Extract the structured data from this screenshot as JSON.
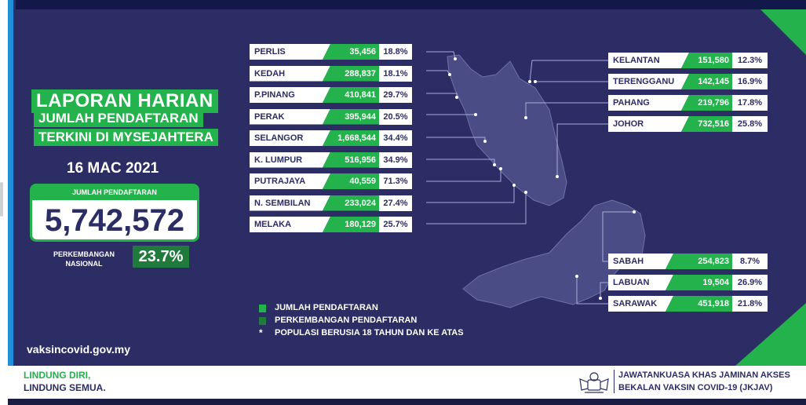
{
  "header": {
    "title_line1": "LAPORAN HARIAN",
    "title_line2": "JUMLAH PENDAFTARAN",
    "title_line3": "TERKINI DI MYSEJAHTERA",
    "date": "16 MAC 2021"
  },
  "summary": {
    "total_label": "JUMLAH PENDAFTARAN",
    "total_value": "5,742,572",
    "national_label_1": "PERKEMBANGAN",
    "national_label_2": "NASIONAL",
    "national_value": "23.7%"
  },
  "states_left": [
    {
      "name": "PERLIS",
      "registered": "35,456",
      "percent": "18.8%"
    },
    {
      "name": "KEDAH",
      "registered": "288,837",
      "percent": "18.1%"
    },
    {
      "name": "P.PINANG",
      "registered": "410,841",
      "percent": "29.7%"
    },
    {
      "name": "PERAK",
      "registered": "395,944",
      "percent": "20.5%"
    },
    {
      "name": "SELANGOR",
      "registered": "1,668,544",
      "percent": "34.4%"
    },
    {
      "name": "K. LUMPUR",
      "registered": "516,956",
      "percent": "34.9%"
    },
    {
      "name": "PUTRAJAYA",
      "registered": "40,559",
      "percent": "71.3%"
    },
    {
      "name": "N. SEMBILAN",
      "registered": "233,024",
      "percent": "27.4%"
    },
    {
      "name": "MELAKA",
      "registered": "180,129",
      "percent": "25.7%"
    }
  ],
  "states_right": [
    {
      "name": "KELANTAN",
      "registered": "151,580",
      "percent": "12.3%"
    },
    {
      "name": "TERENGGANU",
      "registered": "142,145",
      "percent": "16.9%"
    },
    {
      "name": "PAHANG",
      "registered": "219,796",
      "percent": "17.8%"
    },
    {
      "name": "JOHOR",
      "registered": "732,516",
      "percent": "25.8%"
    }
  ],
  "states_east": [
    {
      "name": "SABAH",
      "registered": "254,823",
      "percent": "8.7%"
    },
    {
      "name": "LABUAN",
      "registered": "19,504",
      "percent": "26.9%"
    },
    {
      "name": "SARAWAK",
      "registered": "451,918",
      "percent": "21.8%"
    }
  ],
  "legend": {
    "item1": "JUMLAH PENDAFTARAN",
    "item2": "PERKEMBANGAN PENDAFTARAN",
    "item3_symbol": "*",
    "item3": "POPULASI BERUSIA 18 TAHUN DAN KE ATAS"
  },
  "footer": {
    "url": "vaksincovid.gov.my",
    "slogan_line1": "LINDUNG DIRI,",
    "slogan_line2": "LINDUNG SEMUA.",
    "agency_line1": "JAWATANKUASA KHAS JAMINAN AKSES",
    "agency_line2": "BEKALAN VAKSIN COVID-19 (JKJAV)"
  },
  "colors": {
    "background": "#2c2d64",
    "green": "#23b24b",
    "dark_green": "#1f7a3c",
    "map_fill": "#4a4c86"
  }
}
